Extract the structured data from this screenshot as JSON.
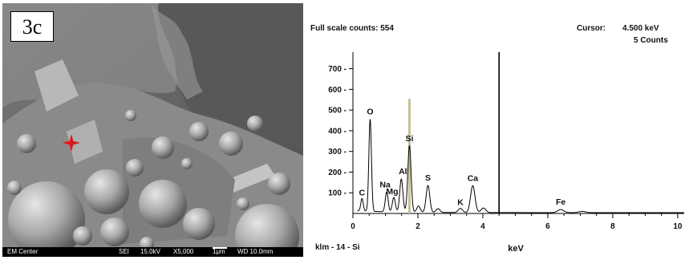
{
  "figure": {
    "panel_label": "3c",
    "sem_bar": {
      "left": "EM Center",
      "mode": "SEI",
      "voltage": "15.0kV",
      "magnification": "X5,000",
      "scale": "1μm",
      "working_distance": "WD 10.0mm"
    }
  },
  "spectrum": {
    "full_scale": "Full scale counts: 554",
    "cursor_label": "Cursor:",
    "cursor_value": "4.500 keV",
    "cursor_counts": "5 Counts",
    "sample_label": "klm - 14 - Si",
    "colors": {
      "trace": "#000000",
      "marker": "#c8c090",
      "cursor": "#000000"
    }
  },
  "chart_data": {
    "type": "line",
    "title": "",
    "xlabel": "keV",
    "ylabel": "",
    "xlim": [
      0,
      10.2
    ],
    "ylim": [
      0,
      780
    ],
    "x_ticks": [
      0,
      2,
      4,
      6,
      8,
      10
    ],
    "y_ticks": [
      100,
      200,
      300,
      400,
      500,
      600,
      700
    ],
    "grid": false,
    "cursor_x": 4.5,
    "marker": {
      "x": 1.74,
      "y": 554
    },
    "peaks": [
      {
        "label": "C",
        "x": 0.28,
        "y": 60
      },
      {
        "label": "O",
        "x": 0.53,
        "y": 445
      },
      {
        "label": "Na",
        "x": 1.04,
        "y": 95
      },
      {
        "label": "Mg",
        "x": 1.26,
        "y": 70
      },
      {
        "label": "Al",
        "x": 1.49,
        "y": 160
      },
      {
        "label": "Si",
        "x": 1.74,
        "y": 320
      },
      {
        "label": "S",
        "x": 2.31,
        "y": 130
      },
      {
        "label": "K",
        "x": 3.31,
        "y": 20
      },
      {
        "label": "Ca",
        "x": 3.69,
        "y": 130
      },
      {
        "label": "Fe",
        "x": 6.4,
        "y": 15
      }
    ],
    "minor_peaks": [
      {
        "x": 2.02,
        "y": 30
      },
      {
        "x": 2.62,
        "y": 18
      },
      {
        "x": 4.02,
        "y": 22
      },
      {
        "x": 7.06,
        "y": 6
      }
    ]
  }
}
